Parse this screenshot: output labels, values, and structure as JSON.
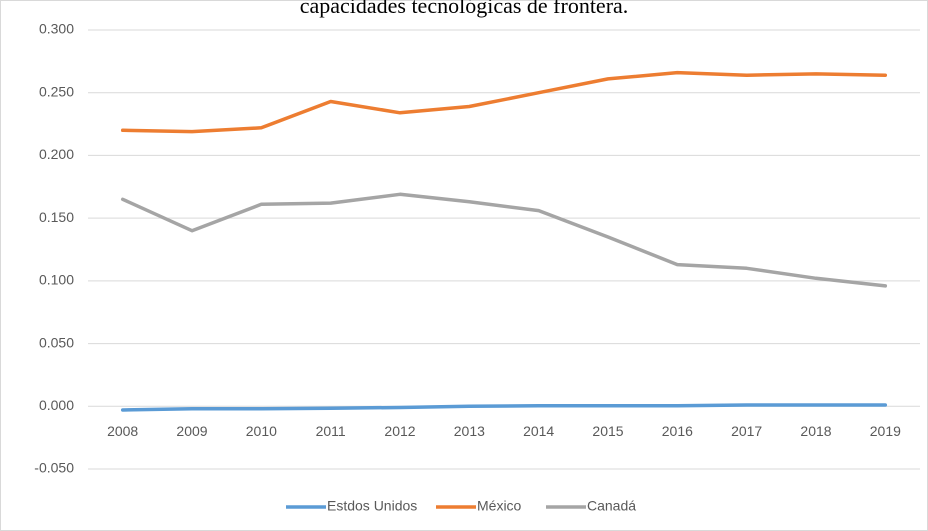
{
  "chart_data": {
    "type": "line",
    "title": "capacidades tecnológicas de frontera.",
    "categories": [
      "2008",
      "2009",
      "2010",
      "2011",
      "2012",
      "2013",
      "2014",
      "2015",
      "2016",
      "2017",
      "2018",
      "2019"
    ],
    "series": [
      {
        "name": "Estdos Unidos",
        "color": "#5b9bd5",
        "values": [
          -0.003,
          -0.002,
          -0.002,
          -0.0015,
          -0.001,
          0,
          0.0005,
          0.0005,
          0.0005,
          0.001,
          0.001,
          0.001
        ]
      },
      {
        "name": "México",
        "color": "#ed7d31",
        "values": [
          0.22,
          0.219,
          0.222,
          0.243,
          0.234,
          0.239,
          0.25,
          0.261,
          0.266,
          0.264,
          0.265,
          0.264
        ]
      },
      {
        "name": "Canadá",
        "color": "#a5a5a5",
        "values": [
          0.165,
          0.14,
          0.161,
          0.162,
          0.169,
          0.163,
          0.156,
          0.135,
          0.113,
          0.11,
          0.102,
          0.096
        ]
      }
    ],
    "ylim": [
      -0.05,
      0.3
    ],
    "yticks": [
      {
        "value": -0.05,
        "label": "-0.050"
      },
      {
        "value": 0,
        "label": "0.000"
      },
      {
        "value": 0.05,
        "label": "0.050"
      },
      {
        "value": 0.1,
        "label": "0.100"
      },
      {
        "value": 0.15,
        "label": "0.150"
      },
      {
        "value": 0.2,
        "label": "0.200"
      },
      {
        "value": 0.25,
        "label": "0.250"
      },
      {
        "value": 0.3,
        "label": "0.300"
      }
    ],
    "grid": true,
    "legend": "bottom"
  }
}
